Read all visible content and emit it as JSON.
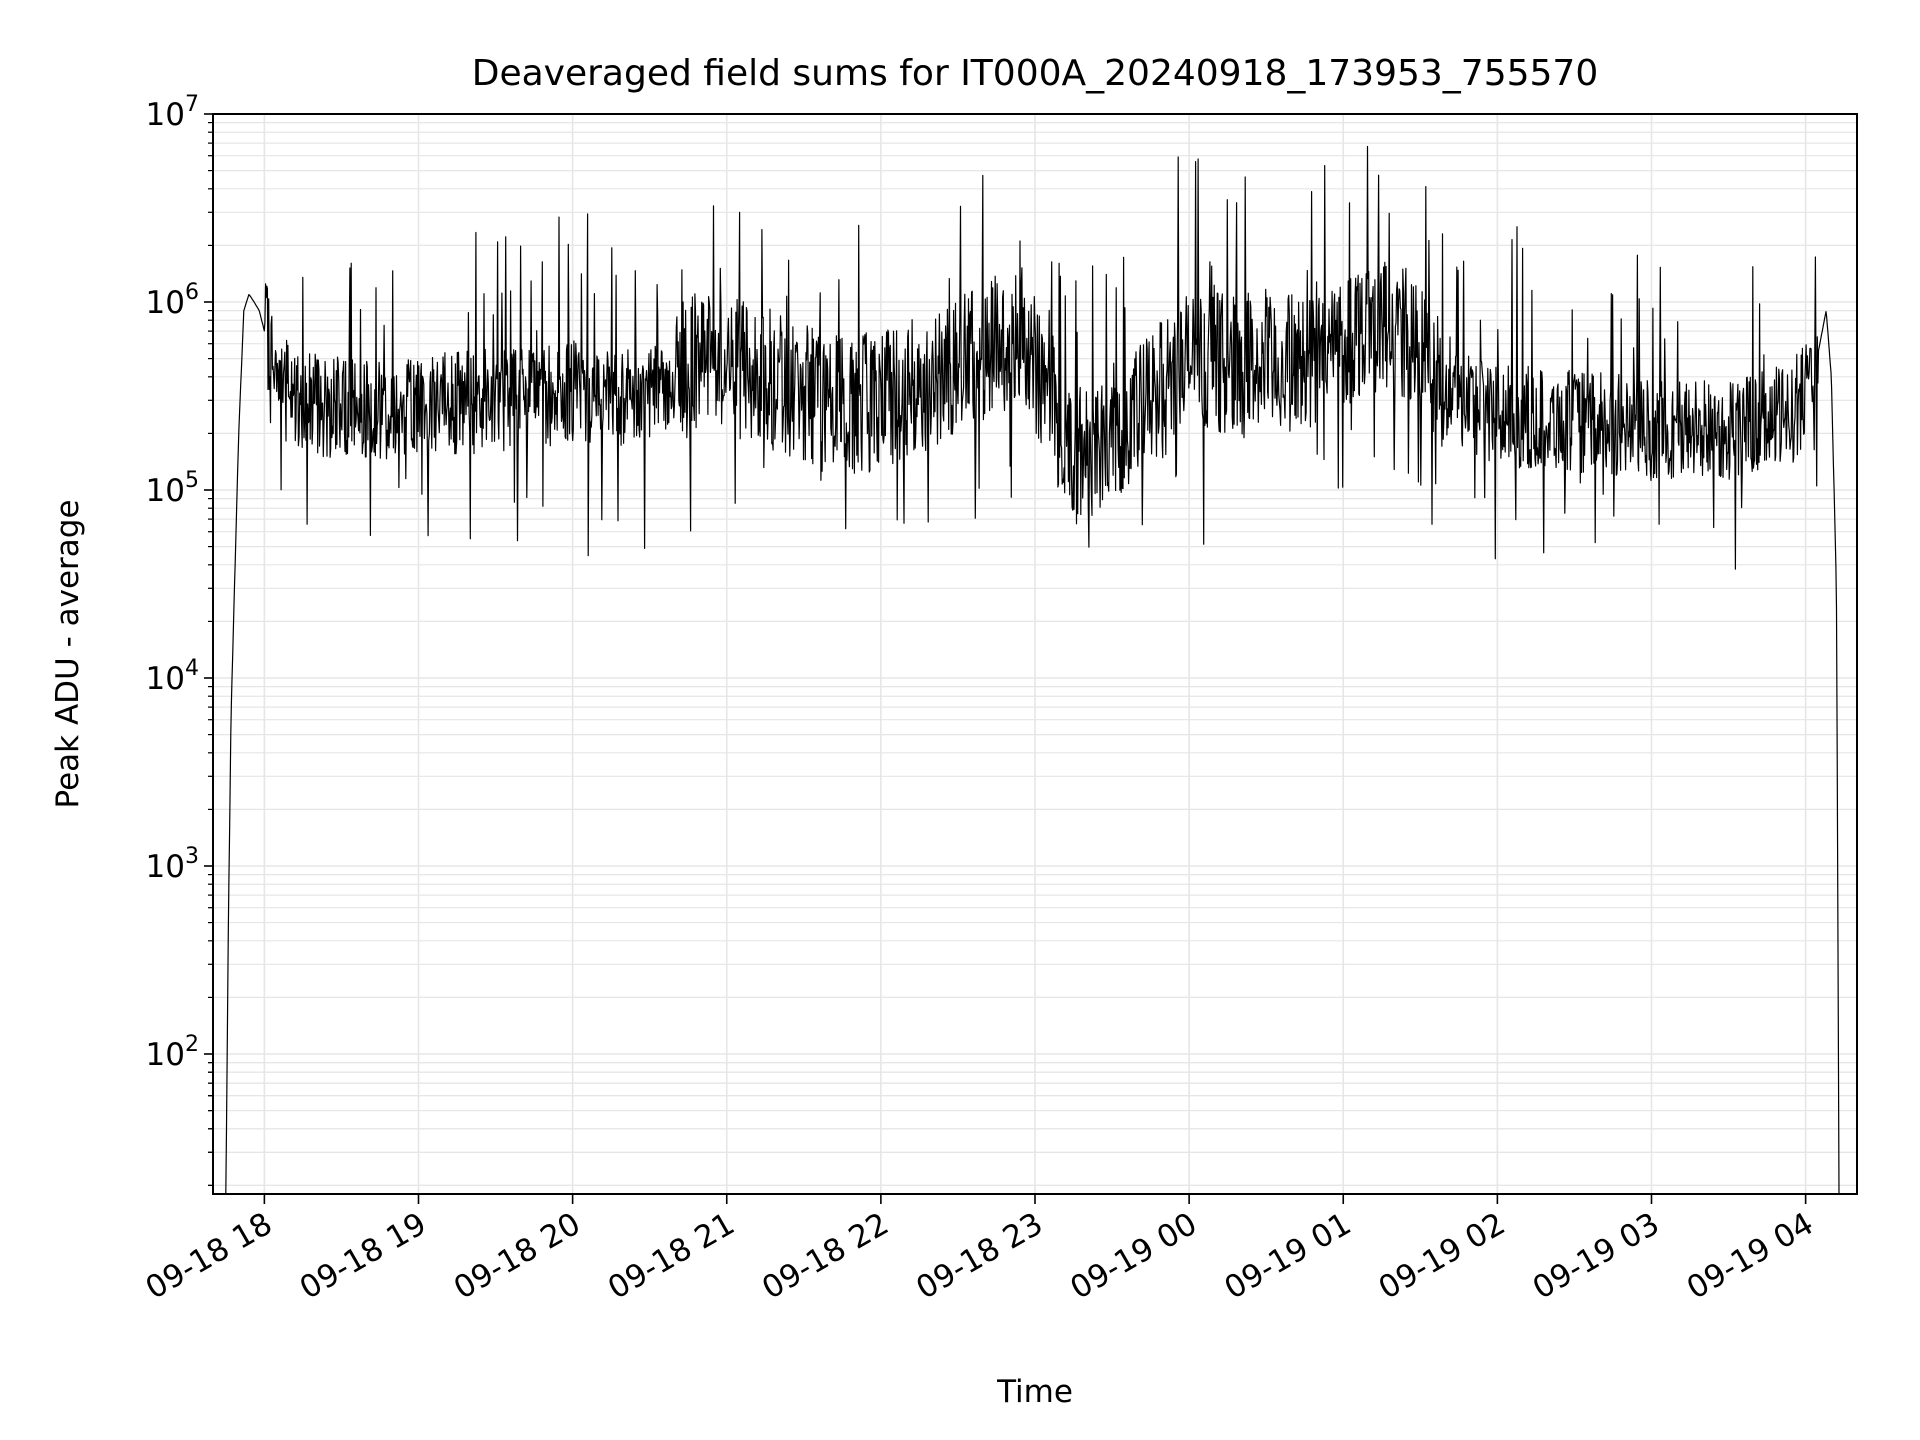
{
  "chart_data": {
    "type": "line",
    "title": "Deaveraged field sums for IT000A_20240918_173953_755570",
    "xlabel": "Time",
    "ylabel": "Peak ADU - average",
    "yscale": "log",
    "ylim": [
      18,
      10000000
    ],
    "xlim": [
      "2024-09-18 17:40",
      "2024-09-19 04:20"
    ],
    "grid": true,
    "legend": "none",
    "line_color": "#000000",
    "grid_color": "#e6e6e6",
    "x_ticks": [
      {
        "time": "2024-09-18 18:00",
        "label": "09-18 18"
      },
      {
        "time": "2024-09-18 19:00",
        "label": "09-18 19"
      },
      {
        "time": "2024-09-18 20:00",
        "label": "09-18 20"
      },
      {
        "time": "2024-09-18 21:00",
        "label": "09-18 21"
      },
      {
        "time": "2024-09-18 22:00",
        "label": "09-18 22"
      },
      {
        "time": "2024-09-18 23:00",
        "label": "09-18 23"
      },
      {
        "time": "2024-09-19 00:00",
        "label": "09-19 00"
      },
      {
        "time": "2024-09-19 01:00",
        "label": "09-19 01"
      },
      {
        "time": "2024-09-19 02:00",
        "label": "09-19 02"
      },
      {
        "time": "2024-09-19 03:00",
        "label": "09-19 03"
      },
      {
        "time": "2024-09-19 04:00",
        "label": "09-19 04"
      }
    ],
    "y_ticks": [
      {
        "value": 100,
        "base": "10",
        "exp": "2"
      },
      {
        "value": 1000,
        "base": "10",
        "exp": "3"
      },
      {
        "value": 10000,
        "base": "10",
        "exp": "4"
      },
      {
        "value": 100000,
        "base": "10",
        "exp": "5"
      },
      {
        "value": 1000000,
        "base": "10",
        "exp": "6"
      },
      {
        "value": 10000000,
        "base": "10",
        "exp": "7"
      }
    ],
    "series": [
      {
        "x": [
          "2024-09-18 17:45",
          "2024-09-18 17:46",
          "2024-09-18 17:47",
          "2024-09-18 17:48",
          "2024-09-18 17:50",
          "2024-09-18 17:52",
          "2024-09-18 17:54",
          "2024-09-18 17:56",
          "2024-09-18 17:58",
          "2024-09-18 18:00",
          "2024-09-18 18:10",
          "2024-09-18 18:30",
          "2024-09-18 19:00",
          "2024-09-18 19:30",
          "2024-09-18 20:00",
          "2024-09-18 20:30",
          "2024-09-18 20:50",
          "2024-09-18 21:15",
          "2024-09-18 21:40",
          "2024-09-18 22:00",
          "2024-09-18 22:30",
          "2024-09-18 22:55",
          "2024-09-18 23:15",
          "2024-09-18 23:40",
          "2024-09-19 00:00",
          "2024-09-19 00:30",
          "2024-09-19 00:50",
          "2024-09-19 01:10",
          "2024-09-19 01:25",
          "2024-09-19 01:40",
          "2024-09-19 02:00",
          "2024-09-19 02:30",
          "2024-09-19 03:00",
          "2024-09-19 03:30",
          "2024-09-19 03:55",
          "2024-09-19 04:05",
          "2024-09-19 04:08",
          "2024-09-19 04:10",
          "2024-09-19 04:12",
          "2024-09-19 04:13"
        ],
        "y": [
          18,
          500,
          6000,
          20000,
          200000,
          900000,
          1100000,
          1000000,
          900000,
          700000,
          300000,
          270000,
          280000,
          300000,
          330000,
          320000,
          500000,
          400000,
          280000,
          300000,
          450000,
          700000,
          150000,
          250000,
          500000,
          450000,
          500000,
          800000,
          650000,
          350000,
          250000,
          230000,
          210000,
          210000,
          250000,
          550000,
          900000,
          400000,
          30000,
          18
        ]
      }
    ]
  }
}
